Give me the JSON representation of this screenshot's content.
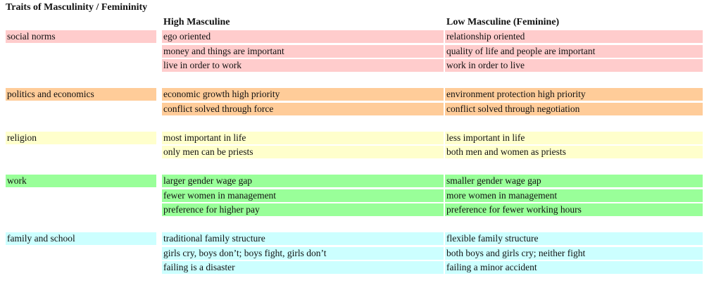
{
  "title": "Traits of Masculinity / Femininity",
  "columns": {
    "high": "High Masculine",
    "low": "Low Masculine (Feminine)"
  },
  "groups": [
    {
      "category": "social norms",
      "color": "#ffcccc",
      "rows": [
        {
          "high": "ego oriented",
          "low": "relationship oriented"
        },
        {
          "high": "money and things are important",
          "low": "quality of life and people are important"
        },
        {
          "high": "live in order to work",
          "low": "work in order to live"
        }
      ]
    },
    {
      "category": "politics and economics",
      "color": "#ffcc99",
      "rows": [
        {
          "high": "economic growth high priority",
          "low": "environment protection high priority"
        },
        {
          "high": "conflict solved through force",
          "low": "conflict solved through negotiation"
        }
      ]
    },
    {
      "category": "religion",
      "color": "#ffffcc",
      "rows": [
        {
          "high": "most important in life",
          "low": "less important in life"
        },
        {
          "high": "only men can be priests",
          "low": "both men and women as priests"
        }
      ]
    },
    {
      "category": "work",
      "color": "#99ff99",
      "rows": [
        {
          "high": "larger gender wage gap",
          "low": "smaller gender wage gap"
        },
        {
          "high": "fewer women in management",
          "low": "more women in management"
        },
        {
          "high": "preference for higher pay",
          "low": "preference for fewer working hours"
        }
      ]
    },
    {
      "category": "family and school",
      "color": "#ccffff",
      "rows": [
        {
          "high": "traditional family structure",
          "low": "flexible family structure"
        },
        {
          "high": "girls cry, boys don’t; boys fight, girls don’t",
          "low": "both boys and girls cry; neither fight"
        },
        {
          "high": "failing is a disaster",
          "low": "failing a minor accident"
        }
      ]
    }
  ]
}
